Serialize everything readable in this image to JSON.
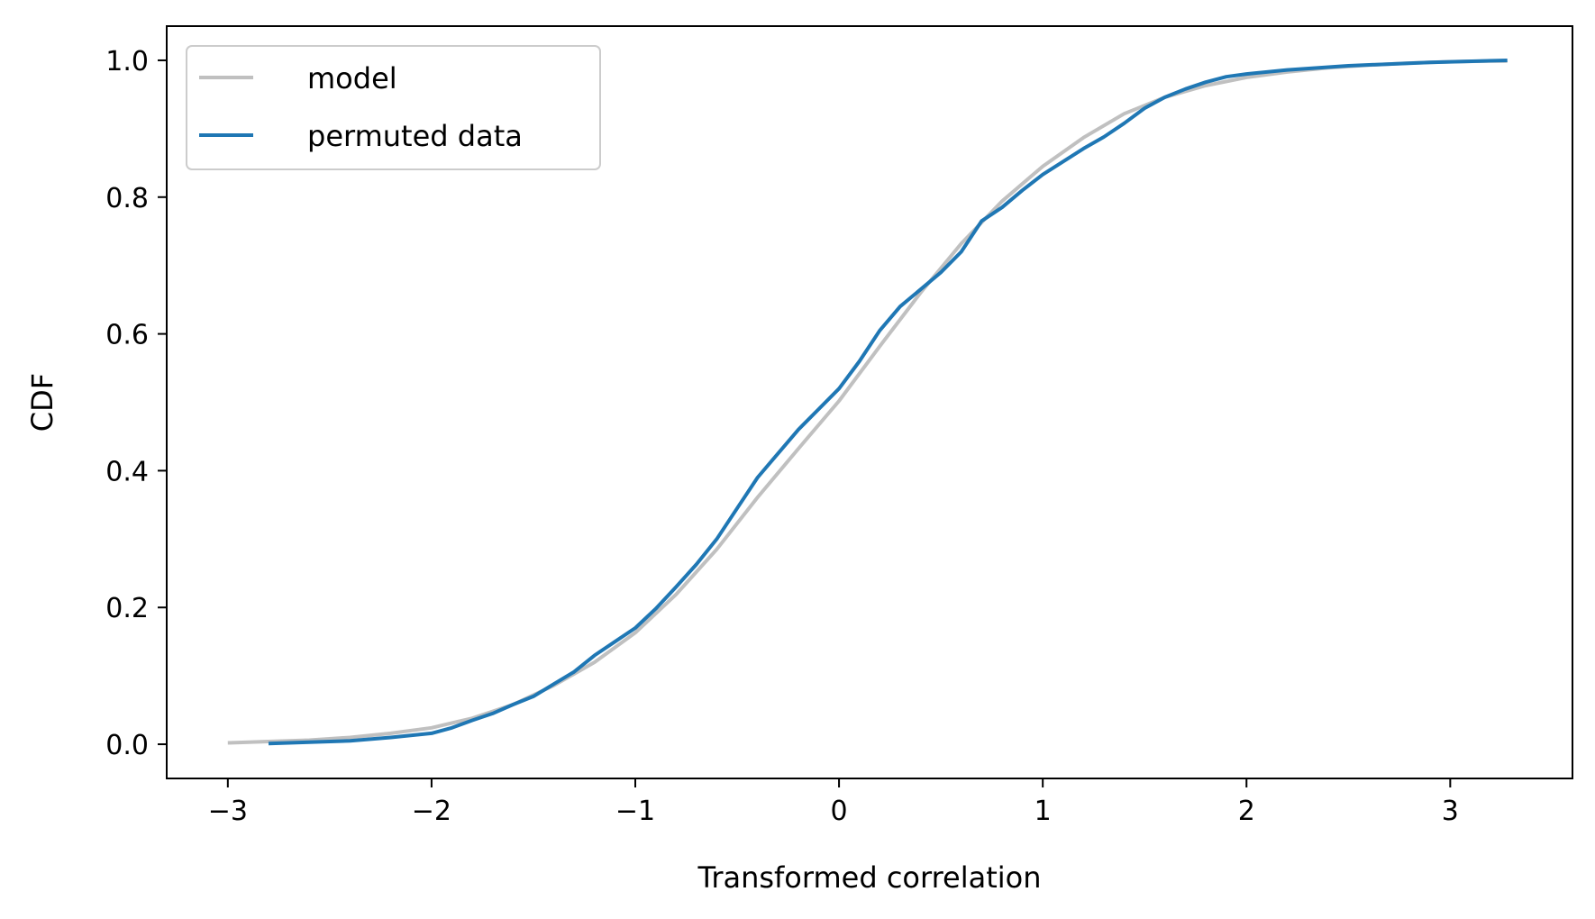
{
  "chart_data": {
    "type": "line",
    "title": "",
    "xlabel": "Transformed correlation",
    "ylabel": "CDF",
    "xlim": [
      -3.3,
      3.6
    ],
    "ylim": [
      -0.05,
      1.05
    ],
    "x_ticks": [
      -3,
      -2,
      -1,
      0,
      1,
      2,
      3
    ],
    "x_tick_labels": [
      "−3",
      "−2",
      "−1",
      "0",
      "1",
      "2",
      "3"
    ],
    "y_ticks": [
      0.0,
      0.2,
      0.4,
      0.6,
      0.8,
      1.0
    ],
    "y_tick_labels": [
      "0.0",
      "0.2",
      "0.4",
      "0.6",
      "0.8",
      "1.0"
    ],
    "grid": false,
    "legend_position": "upper-left",
    "series": [
      {
        "name": "model",
        "color": "#c0c0c0",
        "x": [
          -3.0,
          -2.8,
          -2.6,
          -2.4,
          -2.2,
          -2.0,
          -1.8,
          -1.6,
          -1.4,
          -1.2,
          -1.0,
          -0.8,
          -0.6,
          -0.4,
          -0.2,
          0.0,
          0.2,
          0.4,
          0.6,
          0.8,
          1.0,
          1.2,
          1.4,
          1.6,
          1.8,
          2.0,
          2.2,
          2.4,
          2.6,
          2.8,
          3.0,
          3.2,
          3.28
        ],
        "y": [
          0.002,
          0.004,
          0.006,
          0.01,
          0.016,
          0.024,
          0.038,
          0.058,
          0.086,
          0.12,
          0.163,
          0.219,
          0.285,
          0.361,
          0.432,
          0.502,
          0.582,
          0.66,
          0.732,
          0.794,
          0.845,
          0.887,
          0.922,
          0.946,
          0.963,
          0.975,
          0.983,
          0.989,
          0.993,
          0.996,
          0.998,
          0.999,
          0.999
        ]
      },
      {
        "name": "permuted data",
        "color": "#1f77b4",
        "x": [
          -2.8,
          -2.6,
          -2.4,
          -2.2,
          -2.0,
          -1.9,
          -1.8,
          -1.7,
          -1.6,
          -1.5,
          -1.4,
          -1.3,
          -1.2,
          -1.1,
          -1.0,
          -0.9,
          -0.8,
          -0.7,
          -0.6,
          -0.5,
          -0.4,
          -0.3,
          -0.2,
          -0.1,
          0.0,
          0.1,
          0.2,
          0.3,
          0.4,
          0.5,
          0.6,
          0.7,
          0.8,
          0.9,
          1.0,
          1.1,
          1.2,
          1.3,
          1.4,
          1.5,
          1.6,
          1.7,
          1.8,
          1.9,
          2.0,
          2.2,
          2.5,
          2.9,
          3.28
        ],
        "y": [
          0.001,
          0.003,
          0.005,
          0.01,
          0.016,
          0.024,
          0.035,
          0.045,
          0.058,
          0.07,
          0.088,
          0.106,
          0.13,
          0.15,
          0.17,
          0.198,
          0.23,
          0.263,
          0.3,
          0.345,
          0.39,
          0.425,
          0.46,
          0.49,
          0.52,
          0.56,
          0.605,
          0.64,
          0.665,
          0.69,
          0.72,
          0.765,
          0.785,
          0.81,
          0.833,
          0.852,
          0.871,
          0.888,
          0.908,
          0.93,
          0.946,
          0.958,
          0.968,
          0.976,
          0.98,
          0.986,
          0.992,
          0.997,
          1.0
        ]
      }
    ]
  }
}
